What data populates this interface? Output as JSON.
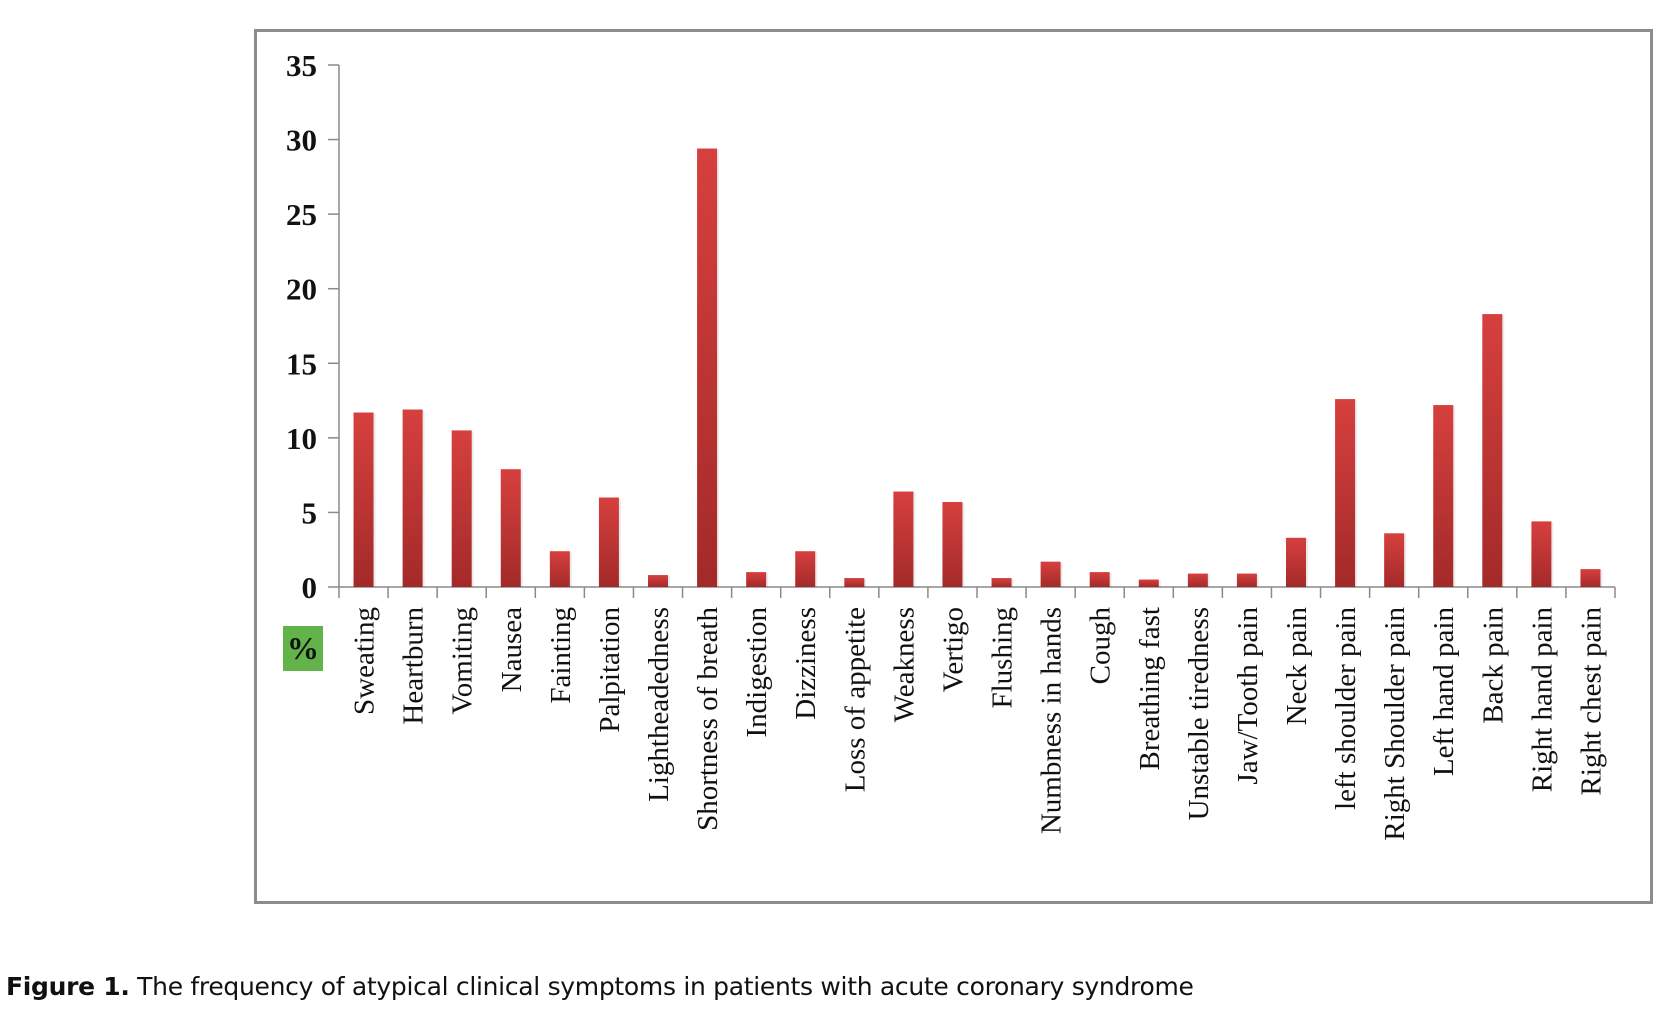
{
  "chart_data": {
    "type": "bar",
    "title": "",
    "xlabel": "",
    "ylabel": "%",
    "ylim": [
      0,
      35
    ],
    "yticks": [
      0,
      5,
      10,
      15,
      20,
      25,
      30,
      35
    ],
    "grid": false,
    "legend": "none",
    "bar_color_top": "#d6403e",
    "bar_color_bottom": "#a32a29",
    "categories": [
      "Sweating",
      "Heartburn",
      "Vomiting",
      "Nausea",
      "Fainting",
      "Palpitation",
      "Lightheadedness",
      "Shortness of breath",
      "Indigestion",
      "Dizziness",
      "Loss of appetite",
      "Weakness",
      "Vertigo",
      "Flushing",
      "Numbness in hands",
      "Cough",
      "Breathing fast",
      "Unstable tiredness",
      "Jaw/Tooth pain",
      "Neck pain",
      "left shoulder pain",
      "Right Shoulder pain",
      "Left hand pain",
      "Back pain",
      "Right hand pain",
      "Right chest pain"
    ],
    "values": [
      11.7,
      11.9,
      10.5,
      7.9,
      2.4,
      6.0,
      0.8,
      29.4,
      1.0,
      2.4,
      0.6,
      6.4,
      5.7,
      0.6,
      1.7,
      1.0,
      0.5,
      0.9,
      0.9,
      3.3,
      12.6,
      3.6,
      12.2,
      18.3,
      4.4,
      1.2
    ]
  },
  "unit_badge": {
    "label": "%",
    "color": "#62b44a"
  },
  "caption": {
    "label": "Figure 1.",
    "text": " The frequency of atypical clinical symptoms in patients with acute coronary syndrome"
  }
}
